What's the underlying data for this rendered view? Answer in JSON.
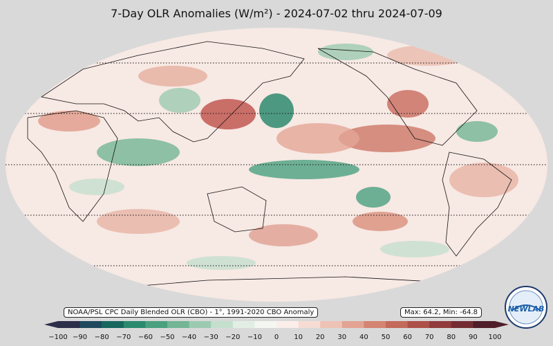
{
  "title": "7-Day OLR Anomalies (W/m²) - 2024-07-02 thru 2024-07-09",
  "source_note": "NOAA/PSL CPC Daily Blended OLR (CBO) - 1°, 1991-2020 CBO Anomaly",
  "stats": "Max: 64.2,  Min: -64.8",
  "logo_text": "NEWLAB",
  "colorbar": {
    "ticks": [
      "−100",
      "−90",
      "−80",
      "−70",
      "−60",
      "−50",
      "−40",
      "−30",
      "−20",
      "−10",
      "0",
      "10",
      "20",
      "30",
      "40",
      "50",
      "60",
      "70",
      "80",
      "90",
      "100"
    ],
    "range": [
      -100,
      100
    ],
    "colors": [
      "#2c2e4a",
      "#1f4a5e",
      "#17675f",
      "#2a8a6e",
      "#4aa07f",
      "#73b595",
      "#9ccab0",
      "#c4dfcd",
      "#e2eee4",
      "#f4f6f1",
      "#fbeeea",
      "#f6dcd3",
      "#eec2b5",
      "#e2a393",
      "#d48472",
      "#c46a5b",
      "#ad5048",
      "#913b3c",
      "#742c33",
      "#4f1e28"
    ]
  },
  "map": {
    "projection": "Robinson",
    "central_longitude": 180,
    "parallels_dotted": [
      "60N",
      "30N",
      "0",
      "30S",
      "60S"
    ],
    "colors": {
      "ocean_base": "#f7e9e4",
      "positive": "#d98f7c",
      "strong_positive": "#b9524c",
      "negative": "#7fb89a",
      "strong_negative": "#2a8a6e",
      "page_bg": "#d9d9d9"
    }
  }
}
